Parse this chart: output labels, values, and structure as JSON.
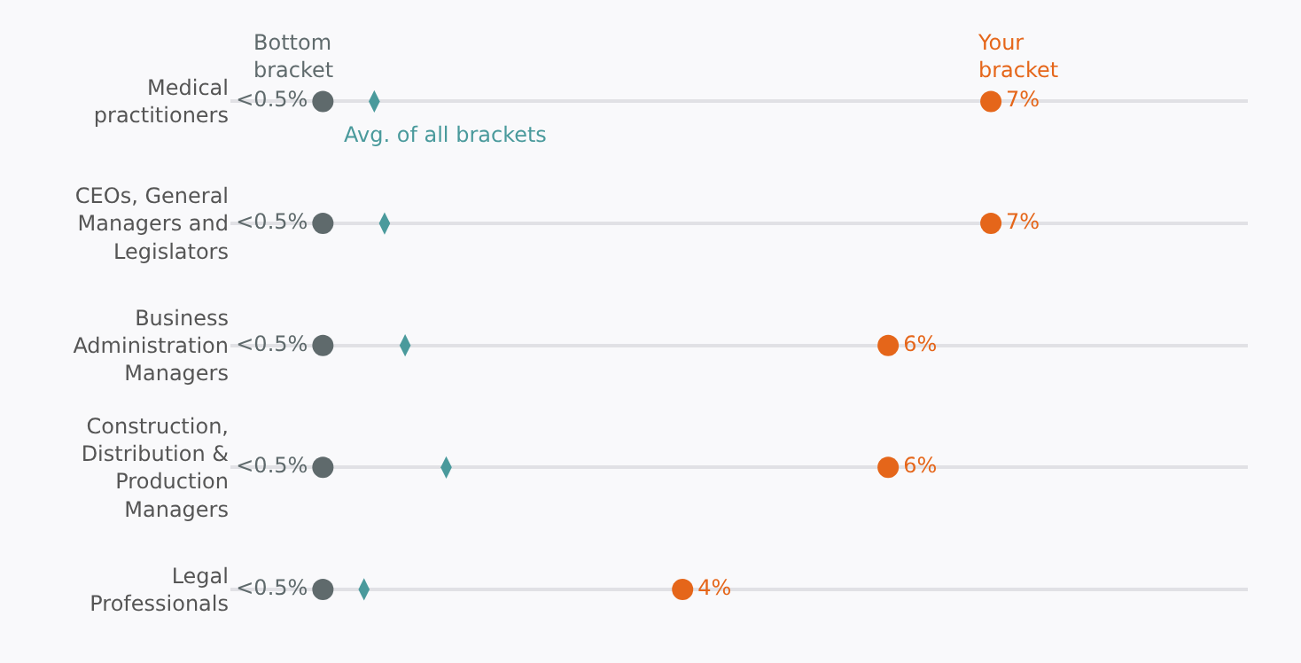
{
  "chart_data": {
    "type": "scatter",
    "orientation": "horizontal",
    "categories": [
      "Medical\npractitioners",
      "CEOs, General\nManagers and\nLegislators",
      "Business\nAdministration\nManagers",
      "Construction,\nDistribution &\nProduction\nManagers",
      "Legal\nProfessionals"
    ],
    "xlim": [
      -0.4,
      9.5
    ],
    "grid": "y",
    "tick_labels": "y",
    "legend": "top left",
    "series": [
      {
        "name": "Bottom\nbracket",
        "color": "#5f6a6c",
        "marker": "circle",
        "values": [
          0.5,
          0.5,
          0.5,
          0.5,
          0.5
        ],
        "value_labels": [
          "<0.5%",
          "<0.5%",
          "<0.5%",
          "<0.5%",
          "<0.5%"
        ]
      },
      {
        "name": "Avg. of all brackets",
        "color": "#4a9a9c",
        "marker": "diamond",
        "values": [
          1.0,
          1.1,
          1.3,
          1.7,
          0.9
        ]
      },
      {
        "name": "Your\nbracket",
        "color": "#e5661a",
        "marker": "circle",
        "values": [
          7,
          7,
          6,
          6,
          4
        ],
        "value_labels": [
          "7%",
          "7%",
          "6%",
          "6%",
          "4%"
        ]
      }
    ]
  }
}
